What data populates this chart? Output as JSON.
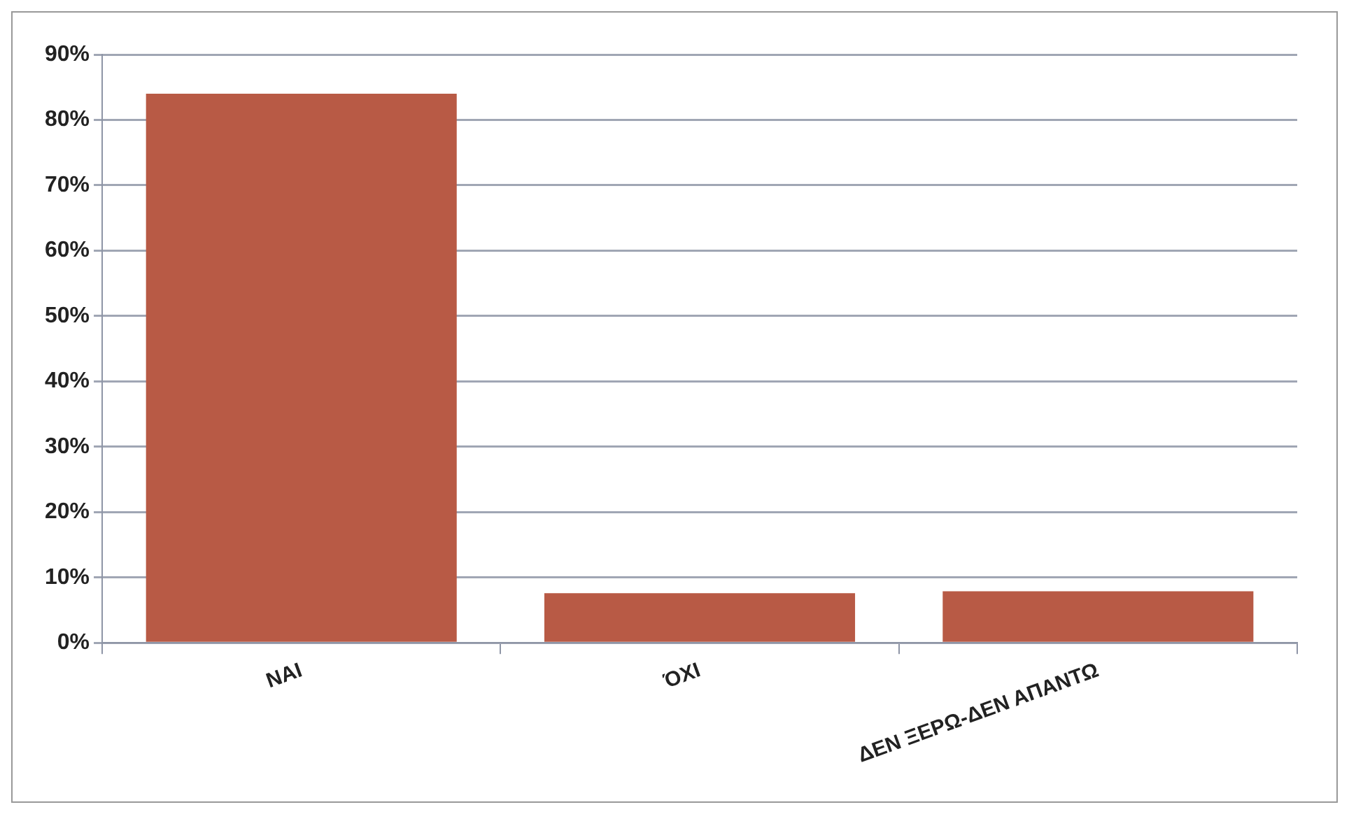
{
  "chart_data": {
    "type": "bar",
    "categories": [
      "NAI",
      "ΌΧΙ",
      "ΔΕΝ ΞΕΡΩ-ΔΕΝ ΑΠΑΝΤΩ"
    ],
    "values": [
      84,
      7.6,
      7.9
    ],
    "color": "#b85a45",
    "ylim": [
      0,
      90
    ],
    "yticks": [
      {
        "value": 0,
        "label": "0%"
      },
      {
        "value": 10,
        "label": "10%"
      },
      {
        "value": 20,
        "label": "20%"
      },
      {
        "value": 30,
        "label": "30%"
      },
      {
        "value": 40,
        "label": "40%"
      },
      {
        "value": 50,
        "label": "50%"
      },
      {
        "value": 60,
        "label": "60%"
      },
      {
        "value": 70,
        "label": "70%"
      },
      {
        "value": 80,
        "label": "80%"
      },
      {
        "value": 90,
        "label": "90%"
      }
    ],
    "grid": "y",
    "legend": false
  }
}
